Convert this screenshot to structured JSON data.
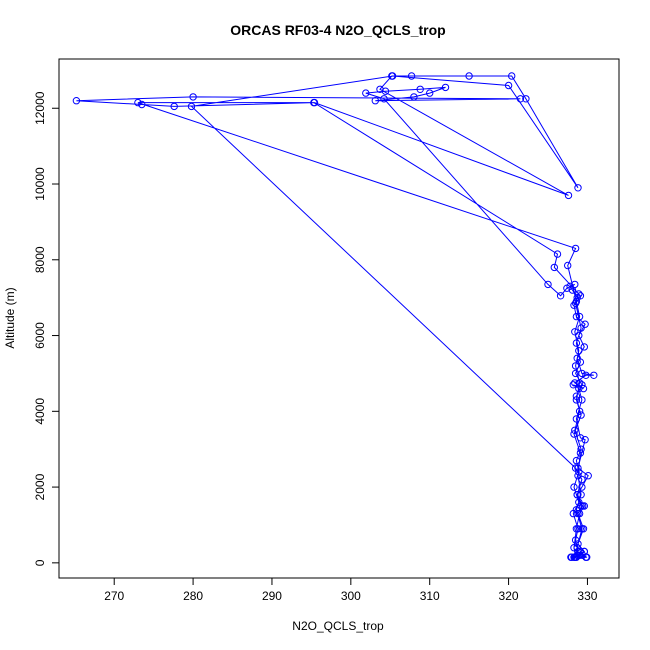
{
  "chart_data": {
    "type": "line",
    "title": "ORCAS RF03-4 N2O_QCLS_trop",
    "xlabel": "N2O_QCLS_trop",
    "ylabel": "Altitude (m)",
    "xlim": [
      263,
      334
    ],
    "ylim": [
      -400,
      13300
    ],
    "xticks": [
      270,
      280,
      290,
      300,
      310,
      320,
      330
    ],
    "yticks": [
      0,
      2000,
      4000,
      6000,
      8000,
      10000,
      12000
    ],
    "grid": false,
    "legend": "none",
    "color": "#0000ff",
    "markers": "open-circle",
    "series": [
      {
        "points": [
          [
            328.5,
            150
          ],
          [
            328.3,
            400
          ],
          [
            328.6,
            900
          ],
          [
            329.0,
            1300
          ],
          [
            329.6,
            1500
          ],
          [
            329.2,
            1500
          ],
          [
            328.7,
            1800
          ],
          [
            329.3,
            2000
          ],
          [
            330.1,
            2300
          ],
          [
            328.8,
            2500
          ],
          [
            329.7,
            3250
          ],
          [
            329.1,
            3300
          ],
          [
            328.6,
            3800
          ],
          [
            329.3,
            4300
          ],
          [
            328.9,
            4600
          ],
          [
            328.2,
            4700
          ],
          [
            329.5,
            4600
          ],
          [
            328.4,
            4750
          ],
          [
            329.8,
            4950
          ],
          [
            330.8,
            4950
          ],
          [
            329.3,
            5000
          ],
          [
            328.7,
            5400
          ],
          [
            329.6,
            5700
          ],
          [
            328.9,
            6000
          ],
          [
            329.7,
            6300
          ],
          [
            328.6,
            6500
          ],
          [
            328.3,
            6800
          ],
          [
            328.9,
            7100
          ],
          [
            328.7,
            7000
          ],
          [
            328.1,
            7200
          ],
          [
            327.8,
            7300
          ],
          [
            328.4,
            7350
          ],
          [
            327.4,
            7250
          ],
          [
            326.6,
            7050
          ],
          [
            325.0,
            7350
          ],
          [
            304.2,
            12250
          ],
          [
            301.9,
            12400
          ],
          [
            304.4,
            12450
          ],
          [
            308.8,
            12500
          ],
          [
            312.0,
            12550
          ],
          [
            310.0,
            12400
          ],
          [
            308.0,
            12300
          ],
          [
            303.1,
            12200
          ],
          [
            321.5,
            12250
          ],
          [
            280.0,
            12300
          ],
          [
            265.2,
            12200
          ],
          [
            273.5,
            12100
          ],
          [
            277.6,
            12050
          ],
          [
            295.3,
            12150
          ],
          [
            326.2,
            8150
          ],
          [
            325.8,
            7800
          ],
          [
            329.1,
            7050
          ],
          [
            328.5,
            6850
          ],
          [
            329.2,
            6200
          ],
          [
            328.6,
            5800
          ],
          [
            329.1,
            5300
          ],
          [
            328.5,
            5000
          ],
          [
            329.3,
            4700
          ],
          [
            328.6,
            4400
          ],
          [
            329.0,
            4000
          ],
          [
            328.4,
            3500
          ],
          [
            329.2,
            3000
          ],
          [
            328.6,
            2700
          ],
          [
            328.9,
            2400
          ],
          [
            328.3,
            2000
          ],
          [
            328.9,
            1600
          ],
          [
            328.2,
            1300
          ],
          [
            328.8,
            900
          ],
          [
            328.5,
            600
          ],
          [
            328.8,
            300
          ],
          [
            328.3,
            150
          ],
          [
            329.0,
            200
          ],
          [
            329.6,
            300
          ],
          [
            328.7,
            400
          ],
          [
            328.4,
            150
          ],
          [
            329.3,
            900
          ],
          [
            328.6,
            1400
          ],
          [
            329.2,
            1800
          ],
          [
            328.8,
            2300
          ],
          [
            329.1,
            2900
          ],
          [
            328.3,
            3400
          ],
          [
            329.2,
            3900
          ],
          [
            328.6,
            4300
          ],
          [
            329.0,
            4750
          ],
          [
            328.5,
            5200
          ],
          [
            328.9,
            5600
          ],
          [
            328.4,
            6100
          ],
          [
            329.0,
            6500
          ],
          [
            328.6,
            6900
          ],
          [
            327.5,
            7850
          ],
          [
            328.5,
            8300
          ],
          [
            273.0,
            12150
          ],
          [
            295.4,
            12150
          ],
          [
            327.6,
            9700
          ],
          [
            303.7,
            12500
          ],
          [
            305.2,
            12850
          ],
          [
            307.7,
            12850
          ],
          [
            315.0,
            12850
          ],
          [
            320.4,
            12850
          ],
          [
            322.2,
            12250
          ],
          [
            328.8,
            9900
          ],
          [
            320.0,
            12600
          ],
          [
            305.3,
            12850
          ],
          [
            279.8,
            12050
          ],
          [
            328.5,
            2500
          ],
          [
            329.3,
            2200
          ],
          [
            328.7,
            1800
          ],
          [
            329.4,
            1500
          ],
          [
            328.8,
            1300
          ],
          [
            329.5,
            900
          ],
          [
            328.8,
            500
          ],
          [
            329.6,
            300
          ],
          [
            328.7,
            200
          ],
          [
            329.8,
            150
          ],
          [
            329.1,
            300
          ],
          [
            328.6,
            150
          ],
          [
            329.4,
            200
          ],
          [
            329.9,
            150
          ],
          [
            328.0,
            150
          ],
          [
            327.9,
            150
          ]
        ]
      }
    ]
  }
}
